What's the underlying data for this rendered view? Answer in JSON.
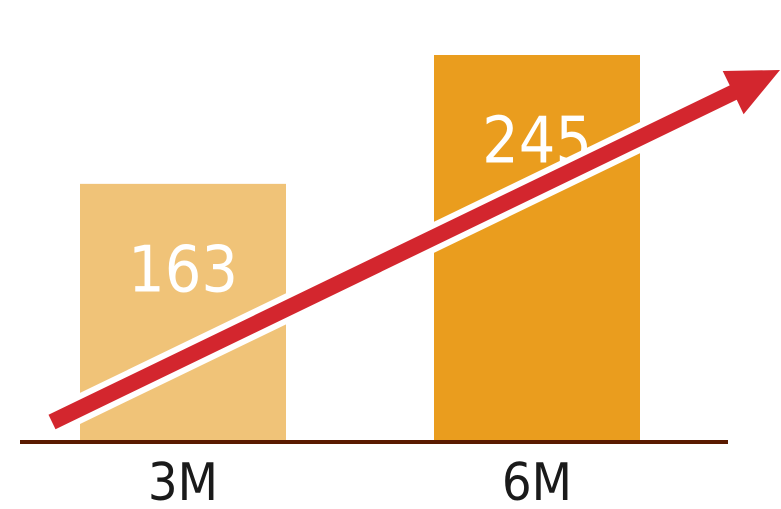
{
  "chart_data": {
    "type": "bar",
    "categories": [
      "3M",
      "6M"
    ],
    "values": [
      163,
      245
    ],
    "value_labels": [
      "163",
      "245"
    ],
    "title": "",
    "xlabel": "",
    "ylabel": "",
    "ylim": [
      0,
      280
    ],
    "grid": false,
    "legend": "none",
    "trend_arrow": true
  },
  "colors": {
    "bar_3m": "#F0C378",
    "bar_6m": "#EA9D1E",
    "arrow": "#D3262E",
    "arrow_outline": "#ffffff",
    "baseline": "#5A1A00"
  }
}
